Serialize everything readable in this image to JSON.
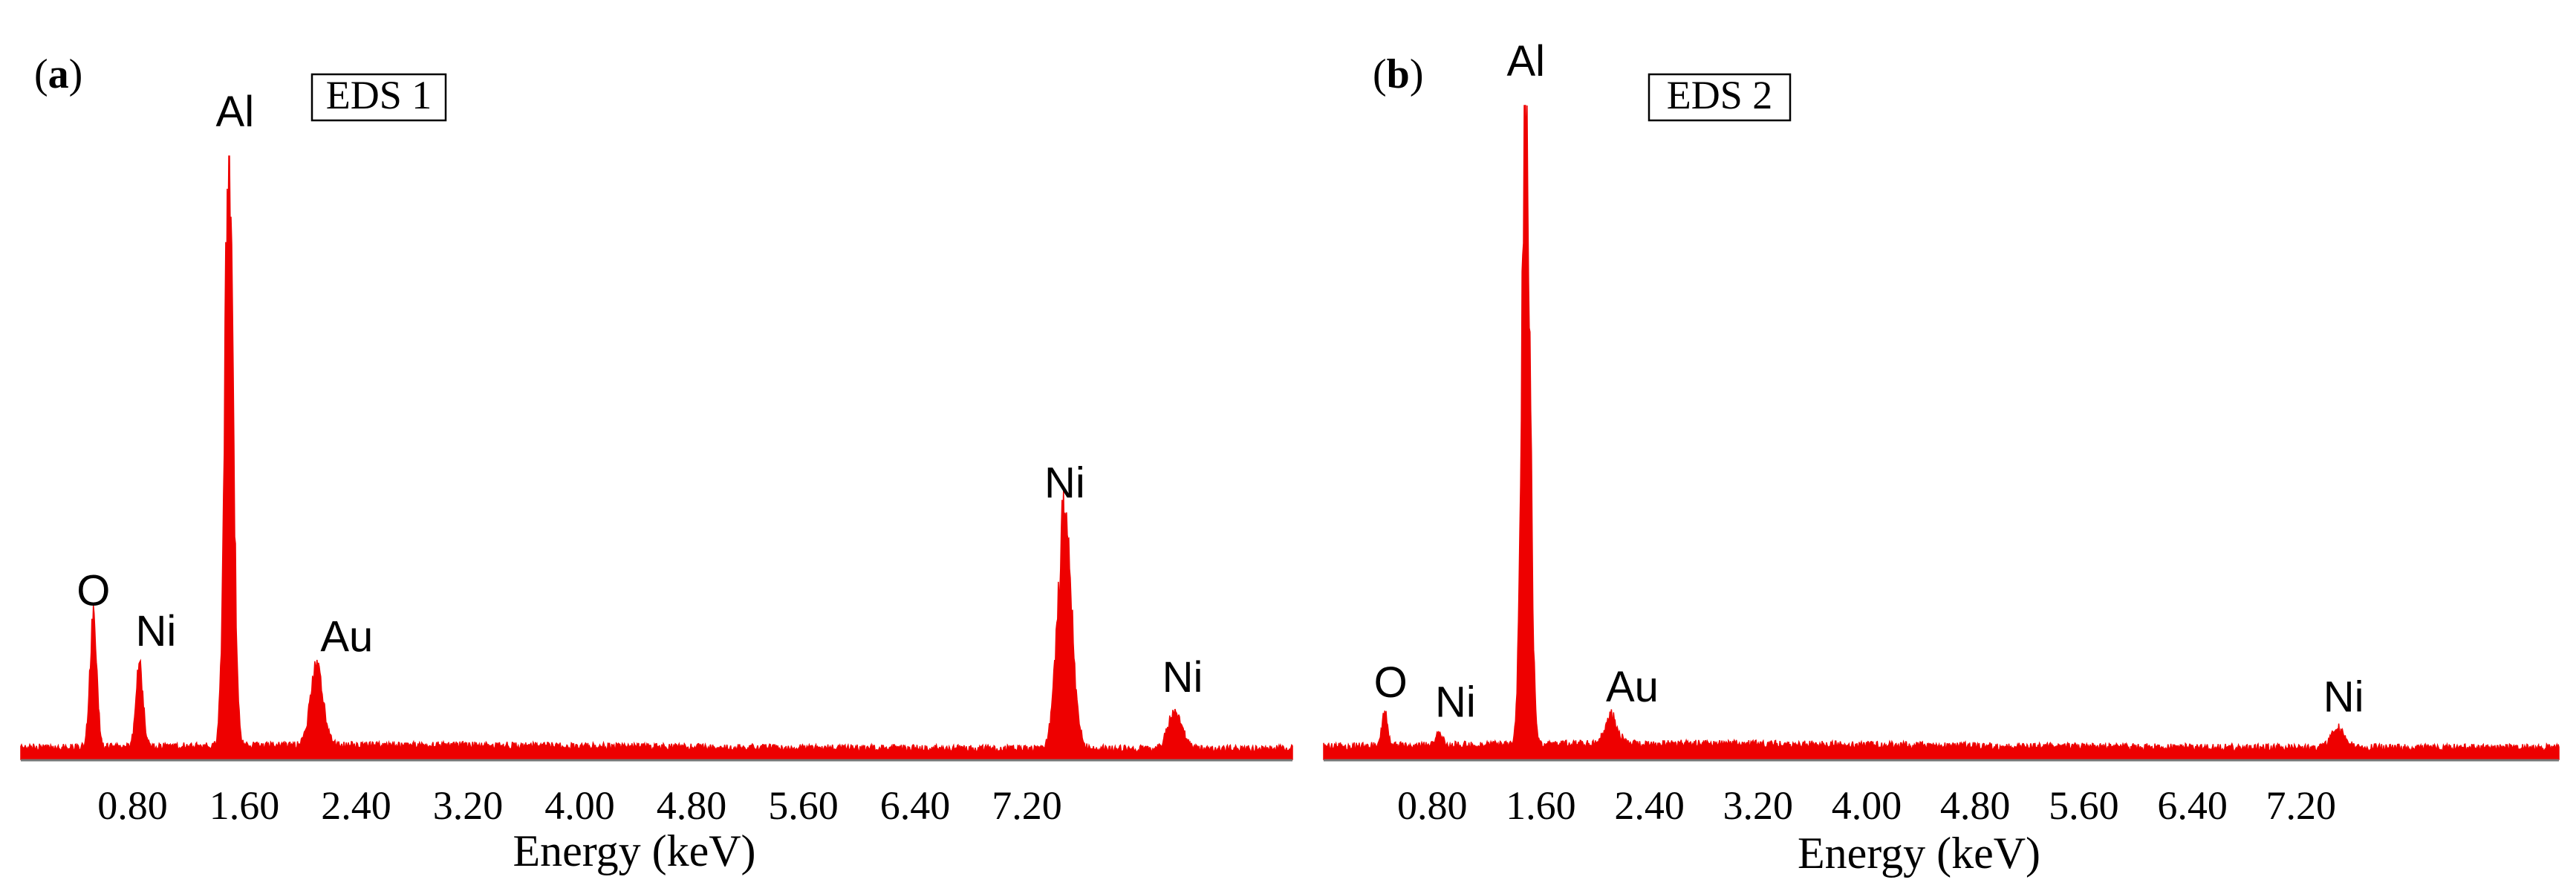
{
  "chart_data": [
    {
      "type": "area",
      "panel_letter": "a",
      "box_label": "EDS 1",
      "xlabel": "Energy (keV)",
      "ylabel": "",
      "xlim": [
        0.0,
        9.1
      ],
      "xticks": [
        "0.80",
        "1.60",
        "2.40",
        "3.20",
        "4.00",
        "4.80",
        "5.60",
        "6.40",
        "7.20"
      ],
      "color": "#ee0000",
      "peaks": [
        {
          "label": "O",
          "energy": 0.52,
          "height": 0.206,
          "width": 0.025
        },
        {
          "label": "Ni",
          "energy": 0.85,
          "height": 0.139,
          "width": 0.025
        },
        {
          "label": "Al",
          "energy": 1.49,
          "height": 1.0,
          "width": 0.03
        },
        {
          "label": "Au",
          "energy": 2.12,
          "height": 0.13,
          "width": 0.045
        },
        {
          "label": "Ni",
          "energy": 7.47,
          "height": 0.385,
          "width": 0.05
        },
        {
          "label": "Ni",
          "energy": 8.26,
          "height": 0.063,
          "width": 0.05
        }
      ]
    },
    {
      "type": "area",
      "panel_letter": "b",
      "box_label": "EDS 2",
      "xlabel": "Energy (keV)",
      "ylabel": "",
      "xlim": [
        0.0,
        9.1
      ],
      "xticks": [
        "0.80",
        "1.60",
        "2.40",
        "3.20",
        "4.00",
        "4.80",
        "5.60",
        "6.40",
        "7.20"
      ],
      "color": "#ee0000",
      "peaks": [
        {
          "label": "O",
          "energy": 0.45,
          "height": 0.05,
          "width": 0.022
        },
        {
          "label": "Ni",
          "energy": 0.85,
          "height": 0.02,
          "width": 0.025
        },
        {
          "label": "Al",
          "energy": 1.49,
          "height": 1.0,
          "width": 0.03
        },
        {
          "label": "Au",
          "energy": 2.12,
          "height": 0.043,
          "width": 0.045
        },
        {
          "label": "Ni",
          "energy": 7.47,
          "height": 0.028,
          "width": 0.05
        }
      ]
    }
  ]
}
